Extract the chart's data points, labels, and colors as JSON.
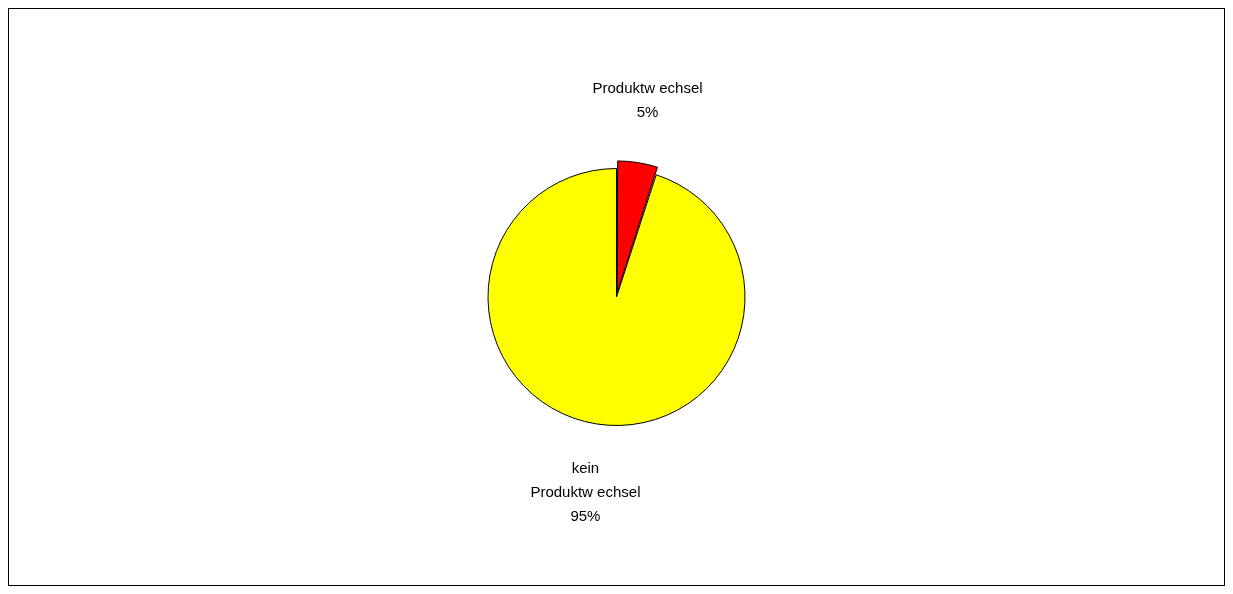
{
  "chart_data": {
    "type": "pie",
    "categories": [
      "Produktw echsel",
      "kein Produktw echsel"
    ],
    "values": [
      5,
      95
    ],
    "colors": [
      "#ff0000",
      "#ffff00"
    ],
    "value_labels": [
      "5%",
      "95%"
    ],
    "legend": false
  }
}
